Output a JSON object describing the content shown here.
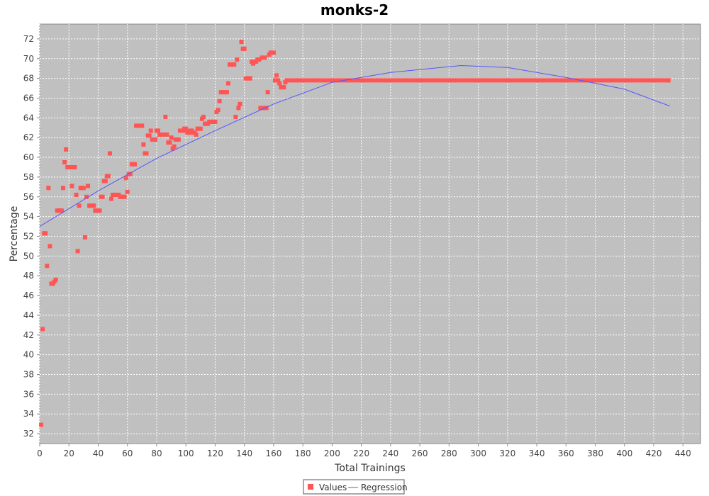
{
  "chart_data": {
    "type": "scatter",
    "title": "monks-2",
    "xlabel": "Total Trainings",
    "ylabel": "Percentage",
    "xlim": [
      0,
      452
    ],
    "ylim": [
      31,
      73.5
    ],
    "xticks": [
      0,
      20,
      40,
      60,
      80,
      100,
      120,
      140,
      160,
      180,
      200,
      220,
      240,
      260,
      280,
      300,
      320,
      340,
      360,
      380,
      400,
      420,
      440
    ],
    "yticks": [
      32,
      34,
      36,
      38,
      40,
      42,
      44,
      46,
      48,
      50,
      52,
      54,
      56,
      58,
      60,
      62,
      64,
      66,
      68,
      70,
      72
    ],
    "grid": true,
    "legend_position": "bottom",
    "colors": {
      "values": "#ff5555",
      "regression": "#5555ff",
      "plot_background": "#c0c0c0"
    },
    "series": [
      {
        "name": "Values",
        "kind": "scatter",
        "x": [
          1,
          2,
          3,
          4,
          5,
          6,
          7,
          8,
          9,
          10,
          11,
          12,
          13,
          14,
          15,
          16,
          17,
          18,
          19,
          20,
          21,
          22,
          23,
          24,
          25,
          26,
          27,
          28,
          29,
          30,
          31,
          32,
          33,
          34,
          35,
          36,
          37,
          38,
          39,
          40,
          41,
          42,
          43,
          44,
          45,
          46,
          47,
          48,
          49,
          50,
          51,
          52,
          53,
          54,
          55,
          56,
          57,
          58,
          59,
          60,
          61,
          62,
          63,
          64,
          65,
          66,
          67,
          68,
          69,
          70,
          71,
          72,
          73,
          74,
          75,
          76,
          77,
          78,
          79,
          80,
          81,
          82,
          83,
          84,
          85,
          86,
          87,
          88,
          89,
          90,
          91,
          92,
          93,
          94,
          95,
          96,
          97,
          98,
          99,
          100,
          101,
          102,
          103,
          104,
          105,
          106,
          107,
          108,
          109,
          110,
          111,
          112,
          113,
          114,
          115,
          116,
          117,
          118,
          119,
          120,
          121,
          122,
          123,
          124,
          125,
          126,
          127,
          128,
          129,
          130,
          131,
          132,
          133,
          134,
          135,
          136,
          137,
          138,
          139,
          140,
          141,
          142,
          143,
          144,
          145,
          146,
          147,
          148,
          149,
          150,
          151,
          152,
          153,
          154,
          155,
          156,
          157,
          158,
          159,
          160,
          161,
          162,
          163,
          164,
          165,
          166,
          167,
          168,
          169,
          430
        ],
        "y": [
          32.9,
          42.6,
          52.3,
          52.3,
          49.0,
          56.9,
          51.0,
          47.2,
          47.2,
          47.4,
          47.6,
          54.6,
          54.6,
          54.6,
          54.6,
          56.9,
          59.5,
          60.8,
          59.0,
          59.0,
          59.0,
          57.1,
          59.0,
          59.0,
          56.2,
          50.5,
          55.1,
          56.9,
          56.9,
          56.9,
          51.9,
          56.0,
          57.1,
          55.1,
          55.1,
          55.1,
          55.1,
          54.6,
          54.6,
          54.6,
          54.6,
          56.0,
          56.0,
          57.6,
          57.6,
          58.1,
          58.1,
          60.4,
          55.8,
          56.2,
          56.2,
          56.2,
          56.2,
          56.2,
          56.0,
          56.0,
          56.0,
          56.0,
          57.9,
          56.5,
          58.3,
          58.3,
          59.3,
          59.3,
          59.3,
          63.2,
          63.2,
          63.2,
          63.2,
          63.2,
          61.3,
          60.4,
          60.4,
          62.2,
          62.2,
          62.7,
          61.8,
          61.8,
          61.8,
          62.7,
          62.7,
          62.3,
          62.3,
          62.3,
          62.3,
          64.1,
          62.3,
          61.5,
          61.5,
          62.0,
          60.9,
          61.1,
          61.8,
          61.8,
          61.8,
          62.7,
          62.7,
          62.7,
          62.9,
          62.9,
          62.5,
          62.5,
          62.7,
          62.7,
          62.5,
          62.5,
          62.3,
          62.9,
          62.9,
          62.9,
          63.9,
          64.1,
          63.4,
          63.4,
          63.4,
          63.6,
          63.6,
          63.6,
          63.6,
          63.6,
          64.6,
          64.8,
          65.7,
          66.6,
          66.6,
          66.6,
          66.6,
          66.6,
          67.5,
          69.4,
          69.4,
          69.4,
          69.4,
          64.1,
          69.9,
          65.0,
          65.4,
          71.7,
          71.0,
          71.0,
          68.0,
          68.0,
          68.0,
          68.0,
          69.7,
          69.5,
          69.7,
          69.7,
          69.9,
          69.9,
          65.0,
          70.1,
          65.0,
          70.1,
          65.0,
          66.6,
          70.4,
          70.6,
          70.6,
          70.6,
          67.8,
          68.3,
          67.8,
          67.5,
          67.1,
          67.1,
          67.1,
          67.6,
          67.8,
          67.8
        ]
      },
      {
        "name": "Regression",
        "kind": "line",
        "x": [
          0,
          40,
          80,
          120,
          160,
          200,
          240,
          288,
          320,
          360,
          400,
          431
        ],
        "y": [
          53.0,
          56.6,
          59.9,
          62.7,
          65.4,
          67.6,
          68.6,
          69.3,
          69.1,
          68.1,
          66.9,
          65.2
        ]
      }
    ],
    "flat_band": {
      "series": "Values",
      "x_start": 170,
      "x_end": 430,
      "y": 67.8
    },
    "legend": [
      "Values",
      "Regression"
    ]
  }
}
